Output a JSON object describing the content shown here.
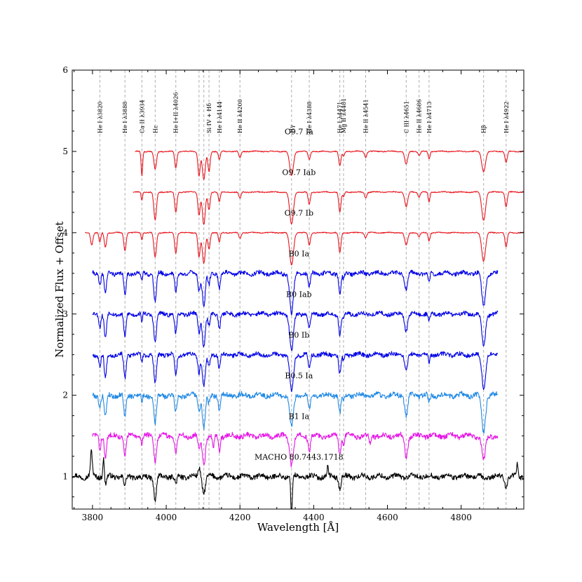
{
  "chart_data": {
    "type": "line",
    "title": "",
    "xlabel": "Wavelength [Å]",
    "ylabel": "Normalized Flux + Offset",
    "xlim": [
      3745,
      4970
    ],
    "ylim": [
      0.6,
      6.0
    ],
    "xticks": [
      3800,
      4000,
      4200,
      4400,
      4600,
      4800
    ],
    "yticks": [
      1,
      2,
      3,
      4,
      5,
      6
    ],
    "grid": false,
    "legend": "none",
    "line_markers": [
      {
        "label": "He I λ3820",
        "x": 3820
      },
      {
        "label": "He I λ3888",
        "x": 3888
      },
      {
        "label": "Ca II λ3934",
        "x": 3934
      },
      {
        "label": "Hε",
        "x": 3970
      },
      {
        "label": "He I+II λ4026",
        "x": 4026
      },
      {
        "label": "",
        "x": 4089
      },
      {
        "label": "",
        "x": 4102
      },
      {
        "label": "Si IV + Hδ",
        "x": 4116
      },
      {
        "label": "He I λ4144",
        "x": 4144
      },
      {
        "label": "He II λ4200",
        "x": 4200
      },
      {
        "label": "Hγ",
        "x": 4340
      },
      {
        "label": "He I λ4388",
        "x": 4388
      },
      {
        "label": "He I λ4471",
        "x": 4471
      },
      {
        "label": "Mg II λ4481",
        "x": 4481
      },
      {
        "label": "He II λ4541",
        "x": 4541
      },
      {
        "label": "C III λ4651",
        "x": 4651
      },
      {
        "label": "He II λ4686",
        "x": 4686
      },
      {
        "label": "He I λ4713",
        "x": 4713
      },
      {
        "label": "Hβ",
        "x": 4861
      },
      {
        "label": "He I λ4922",
        "x": 4922
      }
    ],
    "series": [
      {
        "name": "O9.7 Ia",
        "offset": 5.0,
        "x_start": 3915,
        "x_end": 4970,
        "color": "#e8141c",
        "noise": 0.006,
        "seed": 11,
        "lines": [
          [
            3934,
            0.3,
            2.0
          ],
          [
            3970,
            0.22,
            3.5
          ],
          [
            4026,
            0.2,
            3.0
          ],
          [
            4089,
            0.3,
            3.0
          ],
          [
            4102,
            0.35,
            4.0
          ],
          [
            4116,
            0.25,
            3.0
          ],
          [
            4144,
            0.1,
            2.5
          ],
          [
            4200,
            0.08,
            3.0
          ],
          [
            4340,
            0.3,
            5.0
          ],
          [
            4388,
            0.1,
            3.0
          ],
          [
            4471,
            0.18,
            3.0
          ],
          [
            4481,
            0.06,
            2.5
          ],
          [
            4541,
            0.07,
            3.0
          ],
          [
            4651,
            0.16,
            4.0
          ],
          [
            4686,
            0.05,
            3.0
          ],
          [
            4713,
            0.09,
            2.5
          ],
          [
            4861,
            0.25,
            5.0
          ],
          [
            4922,
            0.14,
            3.0
          ]
        ]
      },
      {
        "name": "O9.7 Iab",
        "offset": 4.5,
        "x_start": 3910,
        "x_end": 4970,
        "color": "#e8141c",
        "noise": 0.006,
        "seed": 23,
        "lines": [
          [
            3934,
            0.1,
            2.0
          ],
          [
            3970,
            0.35,
            3.5
          ],
          [
            4026,
            0.25,
            3.0
          ],
          [
            4089,
            0.28,
            3.0
          ],
          [
            4102,
            0.4,
            4.0
          ],
          [
            4116,
            0.22,
            3.0
          ],
          [
            4144,
            0.12,
            2.5
          ],
          [
            4200,
            0.08,
            3.0
          ],
          [
            4340,
            0.4,
            5.0
          ],
          [
            4388,
            0.15,
            3.0
          ],
          [
            4471,
            0.25,
            3.0
          ],
          [
            4481,
            0.06,
            2.5
          ],
          [
            4541,
            0.07,
            3.0
          ],
          [
            4651,
            0.18,
            4.0
          ],
          [
            4686,
            0.06,
            3.0
          ],
          [
            4713,
            0.12,
            2.5
          ],
          [
            4861,
            0.35,
            5.0
          ],
          [
            4922,
            0.18,
            3.0
          ]
        ]
      },
      {
        "name": "O9.7 Ib",
        "offset": 4.0,
        "x_start": 3780,
        "x_end": 4970,
        "color": "#e8141c",
        "noise": 0.006,
        "seed": 37,
        "lines": [
          [
            3798,
            0.15,
            3.0
          ],
          [
            3820,
            0.12,
            2.5
          ],
          [
            3835,
            0.18,
            3.0
          ],
          [
            3888,
            0.22,
            3.0
          ],
          [
            3934,
            0.08,
            2.0
          ],
          [
            3970,
            0.3,
            3.5
          ],
          [
            4026,
            0.25,
            3.0
          ],
          [
            4089,
            0.3,
            3.0
          ],
          [
            4102,
            0.38,
            4.0
          ],
          [
            4116,
            0.2,
            3.0
          ],
          [
            4144,
            0.12,
            2.5
          ],
          [
            4200,
            0.07,
            3.0
          ],
          [
            4340,
            0.4,
            5.0
          ],
          [
            4388,
            0.15,
            3.0
          ],
          [
            4471,
            0.25,
            3.0
          ],
          [
            4541,
            0.06,
            3.0
          ],
          [
            4651,
            0.15,
            4.0
          ],
          [
            4686,
            0.05,
            3.0
          ],
          [
            4713,
            0.1,
            2.5
          ],
          [
            4861,
            0.35,
            5.0
          ],
          [
            4922,
            0.18,
            3.0
          ]
        ]
      },
      {
        "name": "B0 Ia",
        "offset": 3.5,
        "x_start": 3800,
        "x_end": 4900,
        "color": "#0000e6",
        "noise": 0.025,
        "seed": 41,
        "lines": [
          [
            3820,
            0.15,
            2.5
          ],
          [
            3835,
            0.25,
            3.0
          ],
          [
            3888,
            0.28,
            3.0
          ],
          [
            3934,
            0.1,
            2.0
          ],
          [
            3970,
            0.35,
            3.5
          ],
          [
            4026,
            0.25,
            3.0
          ],
          [
            4089,
            0.2,
            3.0
          ],
          [
            4102,
            0.4,
            4.0
          ],
          [
            4116,
            0.15,
            3.0
          ],
          [
            4144,
            0.18,
            2.5
          ],
          [
            4340,
            0.5,
            5.0
          ],
          [
            4388,
            0.18,
            3.0
          ],
          [
            4471,
            0.25,
            3.0
          ],
          [
            4481,
            0.08,
            2.5
          ],
          [
            4651,
            0.2,
            4.0
          ],
          [
            4713,
            0.1,
            2.5
          ],
          [
            4861,
            0.4,
            5.0
          ]
        ]
      },
      {
        "name": "B0 Iab",
        "offset": 3.0,
        "x_start": 3800,
        "x_end": 4900,
        "color": "#0000e6",
        "noise": 0.025,
        "seed": 53,
        "lines": [
          [
            3820,
            0.15,
            2.5
          ],
          [
            3835,
            0.3,
            3.0
          ],
          [
            3888,
            0.3,
            3.0
          ],
          [
            3934,
            0.1,
            2.0
          ],
          [
            3970,
            0.35,
            3.5
          ],
          [
            4026,
            0.25,
            3.0
          ],
          [
            4089,
            0.22,
            3.0
          ],
          [
            4102,
            0.4,
            4.0
          ],
          [
            4116,
            0.15,
            3.0
          ],
          [
            4144,
            0.18,
            2.5
          ],
          [
            4340,
            0.45,
            5.0
          ],
          [
            4388,
            0.18,
            3.0
          ],
          [
            4471,
            0.25,
            3.0
          ],
          [
            4481,
            0.08,
            2.5
          ],
          [
            4651,
            0.2,
            4.0
          ],
          [
            4713,
            0.1,
            2.5
          ],
          [
            4861,
            0.4,
            5.0
          ]
        ]
      },
      {
        "name": "B0 Ib",
        "offset": 2.5,
        "x_start": 3800,
        "x_end": 4900,
        "color": "#0000e6",
        "noise": 0.025,
        "seed": 67,
        "lines": [
          [
            3820,
            0.15,
            2.5
          ],
          [
            3835,
            0.3,
            3.0
          ],
          [
            3888,
            0.3,
            3.0
          ],
          [
            3934,
            0.1,
            2.0
          ],
          [
            3970,
            0.35,
            3.5
          ],
          [
            4026,
            0.25,
            3.0
          ],
          [
            4089,
            0.22,
            3.0
          ],
          [
            4102,
            0.4,
            4.0
          ],
          [
            4116,
            0.15,
            3.0
          ],
          [
            4144,
            0.18,
            2.5
          ],
          [
            4340,
            0.45,
            5.0
          ],
          [
            4388,
            0.18,
            3.0
          ],
          [
            4471,
            0.25,
            3.0
          ],
          [
            4481,
            0.08,
            2.5
          ],
          [
            4651,
            0.2,
            4.0
          ],
          [
            4713,
            0.1,
            2.5
          ],
          [
            4861,
            0.4,
            5.0
          ]
        ]
      },
      {
        "name": "B0.5 Ia",
        "offset": 2.0,
        "x_start": 3800,
        "x_end": 4900,
        "color": "#1e88e5",
        "noise": 0.03,
        "seed": 79,
        "lines": [
          [
            3820,
            0.15,
            2.5
          ],
          [
            3835,
            0.28,
            3.0
          ],
          [
            3888,
            0.28,
            3.0
          ],
          [
            3934,
            0.1,
            2.0
          ],
          [
            3970,
            0.35,
            3.5
          ],
          [
            4026,
            0.22,
            3.0
          ],
          [
            4089,
            0.18,
            3.0
          ],
          [
            4102,
            0.4,
            4.0
          ],
          [
            4116,
            0.12,
            3.0
          ],
          [
            4144,
            0.18,
            2.5
          ],
          [
            4340,
            0.4,
            5.0
          ],
          [
            4388,
            0.18,
            3.0
          ],
          [
            4471,
            0.22,
            3.0
          ],
          [
            4481,
            0.08,
            2.5
          ],
          [
            4651,
            0.25,
            4.0
          ],
          [
            4713,
            0.1,
            2.5
          ],
          [
            4861,
            0.45,
            5.0
          ]
        ]
      },
      {
        "name": "B1 Ia",
        "offset": 1.5,
        "x_start": 3800,
        "x_end": 4900,
        "color": "#e615e6",
        "noise": 0.03,
        "seed": 83,
        "lines": [
          [
            3820,
            0.18,
            2.5
          ],
          [
            3835,
            0.25,
            3.0
          ],
          [
            3888,
            0.25,
            3.0
          ],
          [
            3934,
            0.1,
            2.0
          ],
          [
            3970,
            0.3,
            3.5
          ],
          [
            4026,
            0.2,
            3.0
          ],
          [
            4089,
            0.15,
            3.0
          ],
          [
            4102,
            0.35,
            4.0
          ],
          [
            4128,
            0.15,
            2.5
          ],
          [
            4144,
            0.18,
            2.5
          ],
          [
            4340,
            0.35,
            5.0
          ],
          [
            4388,
            0.18,
            3.0
          ],
          [
            4471,
            0.22,
            3.0
          ],
          [
            4481,
            0.1,
            2.5
          ],
          [
            4553,
            0.1,
            2.5
          ],
          [
            4651,
            0.25,
            4.0
          ],
          [
            4861,
            0.3,
            5.0
          ]
        ]
      },
      {
        "name": "MACHO 80.7443.1718",
        "offset": 1.0,
        "x_start": 3745,
        "x_end": 4970,
        "color": "#000000",
        "noise": 0.03,
        "seed": 97,
        "lines": [
          [
            3835,
            0.1,
            3.0
          ],
          [
            3888,
            0.12,
            3.0
          ],
          [
            3934,
            0.08,
            2.0
          ],
          [
            3970,
            0.3,
            3.5
          ],
          [
            4026,
            0.1,
            3.0
          ],
          [
            4102,
            0.2,
            4.0
          ],
          [
            4340,
            0.5,
            2.0
          ],
          [
            4471,
            0.15,
            3.0
          ],
          [
            4861,
            0.2,
            3.0
          ],
          [
            4922,
            0.12,
            3.0
          ]
        ],
        "emissions": [
          [
            3797,
            0.3,
            2.5
          ],
          [
            3830,
            0.25,
            2.0
          ],
          [
            4090,
            0.12,
            3.0
          ],
          [
            4438,
            0.1,
            2.0
          ],
          [
            4861,
            0.18,
            2.5
          ],
          [
            4953,
            0.15,
            2.0
          ]
        ]
      }
    ]
  }
}
